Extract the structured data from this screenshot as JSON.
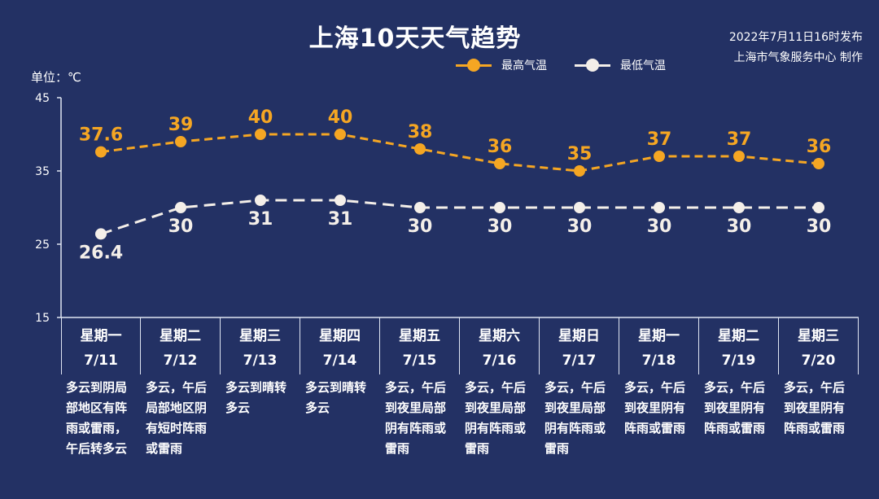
{
  "header": {
    "title": "上海10天天气趋势",
    "publish_line1": "2022年7月11日16时发布",
    "publish_line2": "上海市气象服务中心 制作",
    "unit_label": "单位：℃"
  },
  "legend": {
    "max_label": "最高气温",
    "min_label": "最低气温"
  },
  "colors": {
    "background": "#233164",
    "max": "#f5a623",
    "min": "#f4efe9"
  },
  "chart_data": {
    "type": "line",
    "categories": [
      "7/11",
      "7/12",
      "7/13",
      "7/14",
      "7/15",
      "7/16",
      "7/17",
      "7/18",
      "7/19",
      "7/20"
    ],
    "series": [
      {
        "name": "最高气温",
        "values": [
          37.6,
          39,
          40,
          40,
          38,
          36,
          35,
          37,
          37,
          36
        ]
      },
      {
        "name": "最低气温",
        "values": [
          26.4,
          30,
          31,
          31,
          30,
          30,
          30,
          30,
          30,
          30
        ]
      }
    ],
    "ylim": [
      15,
      45
    ],
    "yticks": [
      "15",
      "25",
      "35",
      "45"
    ],
    "title": "上海10天天气趋势",
    "xlabel": "",
    "ylabel": "单位：℃",
    "grid": false,
    "legend": "top-right"
  },
  "days": [
    {
      "weekday": "星期一",
      "date": "7/11",
      "desc": "多云到阴局部地区有阵雨或雷雨，午后转多云"
    },
    {
      "weekday": "星期二",
      "date": "7/12",
      "desc": "多云，午后局部地区阴有短时阵雨或雷雨"
    },
    {
      "weekday": "星期三",
      "date": "7/13",
      "desc": "多云到晴转多云"
    },
    {
      "weekday": "星期四",
      "date": "7/14",
      "desc": "多云到晴转多云"
    },
    {
      "weekday": "星期五",
      "date": "7/15",
      "desc": "多云，午后到夜里局部阴有阵雨或雷雨"
    },
    {
      "weekday": "星期六",
      "date": "7/16",
      "desc": "多云，午后到夜里局部阴有阵雨或雷雨"
    },
    {
      "weekday": "星期日",
      "date": "7/17",
      "desc": "多云，午后到夜里局部阴有阵雨或雷雨"
    },
    {
      "weekday": "星期一",
      "date": "7/18",
      "desc": "多云，午后到夜里阴有阵雨或雷雨"
    },
    {
      "weekday": "星期二",
      "date": "7/19",
      "desc": "多云，午后到夜里阴有阵雨或雷雨"
    },
    {
      "weekday": "星期三",
      "date": "7/20",
      "desc": "多云，午后到夜里阴有阵雨或雷雨"
    }
  ]
}
